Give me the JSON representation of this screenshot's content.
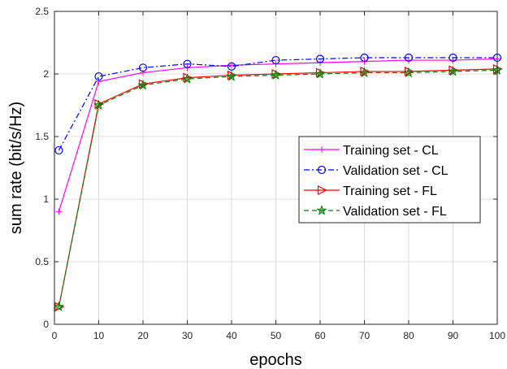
{
  "chart_data": {
    "type": "line",
    "xlabel": "epochs",
    "ylabel": "sum rate (bit/s/Hz)",
    "xlim": [
      0,
      100
    ],
    "ylim": [
      0,
      2.5
    ],
    "xticks": [
      0,
      10,
      20,
      30,
      40,
      50,
      60,
      70,
      80,
      90,
      100
    ],
    "yticks": [
      0,
      0.5,
      1,
      1.5,
      2,
      2.5
    ],
    "xtick_labels": [
      "0",
      "10",
      "20",
      "30",
      "40",
      "50",
      "60",
      "70",
      "80",
      "90",
      "100"
    ],
    "ytick_labels": [
      "0",
      "0.5",
      "1",
      "1.5",
      "2",
      "2.5"
    ],
    "grid": true,
    "legend_position": "right",
    "x": [
      1,
      10,
      20,
      30,
      40,
      50,
      60,
      70,
      80,
      90,
      100
    ],
    "series": [
      {
        "name": "Training set - CL",
        "color": "#ff00ff",
        "marker": "plus",
        "line_style": "solid",
        "values": [
          0.9,
          1.94,
          2.01,
          2.05,
          2.07,
          2.08,
          2.09,
          2.1,
          2.11,
          2.11,
          2.12
        ]
      },
      {
        "name": "Validation set - CL",
        "color": "#0000ff",
        "marker": "circle",
        "line_style": "dashdot",
        "values": [
          1.39,
          1.98,
          2.05,
          2.08,
          2.06,
          2.11,
          2.12,
          2.13,
          2.13,
          2.13,
          2.13
        ]
      },
      {
        "name": "Training set - FL",
        "color": "#ff0000",
        "marker": "triangle-right",
        "line_style": "solid",
        "values": [
          0.14,
          1.76,
          1.92,
          1.97,
          1.99,
          2.0,
          2.01,
          2.02,
          2.02,
          2.03,
          2.04
        ]
      },
      {
        "name": "Validation set - FL",
        "color": "#008000",
        "marker": "star",
        "line_style": "dashed",
        "values": [
          0.14,
          1.75,
          1.91,
          1.96,
          1.98,
          1.99,
          2.0,
          2.01,
          2.01,
          2.02,
          2.03
        ]
      }
    ]
  }
}
